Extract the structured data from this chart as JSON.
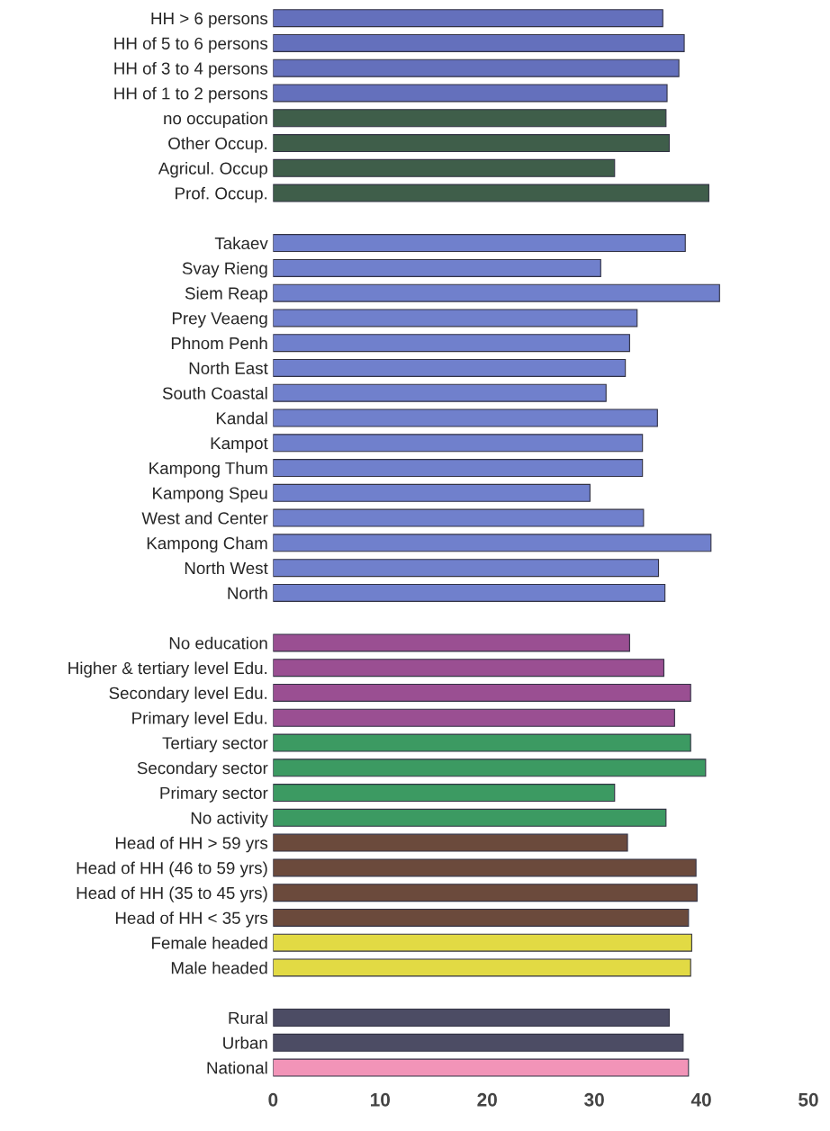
{
  "chart_data": {
    "type": "bar",
    "orientation": "horizontal",
    "categories": [
      "HH > 6 persons",
      "HH of 5 to 6 persons",
      "HH of 3 to 4 persons",
      "HH of 1 to 2 persons",
      "no occupation",
      "Other Occup.",
      "Agricul. Occup",
      "Prof. Occup.",
      null,
      "Takaev",
      "Svay Rieng",
      "Siem Reap",
      "Prey Veaeng",
      "Phnom Penh",
      "North East",
      "South Coastal",
      "Kandal",
      "Kampot",
      "Kampong Thum",
      "Kampong Speu",
      "West and Center",
      "Kampong Cham",
      "North West",
      "North",
      null,
      "No education",
      "Higher & tertiary level Edu.",
      "Secondary level Edu.",
      "Primary level Edu.",
      "Tertiary sector",
      "Secondary sector",
      "Primary sector",
      "No activity",
      "Head of HH > 59 yrs",
      "Head of HH (46 to 59 yrs)",
      "Head of HH (35 to 45 yrs)",
      "Head of HH < 35 yrs",
      "Female headed",
      "Male headed",
      null,
      "Rural",
      "Urban",
      "National"
    ],
    "values": [
      36.4,
      38.4,
      37.9,
      36.8,
      36.7,
      37.0,
      31.9,
      40.7,
      null,
      38.5,
      30.6,
      41.7,
      34.0,
      33.3,
      32.9,
      31.1,
      35.9,
      34.5,
      34.5,
      29.6,
      34.6,
      40.9,
      36.0,
      36.6,
      null,
      33.3,
      36.5,
      39.0,
      37.5,
      39.0,
      40.4,
      31.9,
      36.7,
      33.1,
      39.5,
      39.6,
      38.8,
      39.1,
      39.0,
      null,
      37.0,
      38.3,
      38.8
    ],
    "colors": [
      "#6470bc",
      "#6470bc",
      "#6470bc",
      "#6470bc",
      "#3f5e4a",
      "#3f5e4a",
      "#3f5e4a",
      "#3f5e4a",
      null,
      "#7080cc",
      "#7080cc",
      "#7080cc",
      "#7080cc",
      "#7080cc",
      "#7080cc",
      "#7080cc",
      "#7080cc",
      "#7080cc",
      "#7080cc",
      "#7080cc",
      "#7080cc",
      "#7080cc",
      "#7080cc",
      "#7080cc",
      null,
      "#9a4f92",
      "#9a4f92",
      "#9a4f92",
      "#9a4f92",
      "#3c9a62",
      "#3c9a62",
      "#3c9a62",
      "#3c9a62",
      "#6b4a3c",
      "#6b4a3c",
      "#6b4a3c",
      "#6b4a3c",
      "#e2da44",
      "#e2da44",
      null,
      "#4c4c64",
      "#4c4c64",
      "#f294b8"
    ],
    "xlim": [
      0,
      50
    ],
    "xticks": [
      0,
      10,
      20,
      30,
      40,
      50
    ],
    "grid": false
  }
}
